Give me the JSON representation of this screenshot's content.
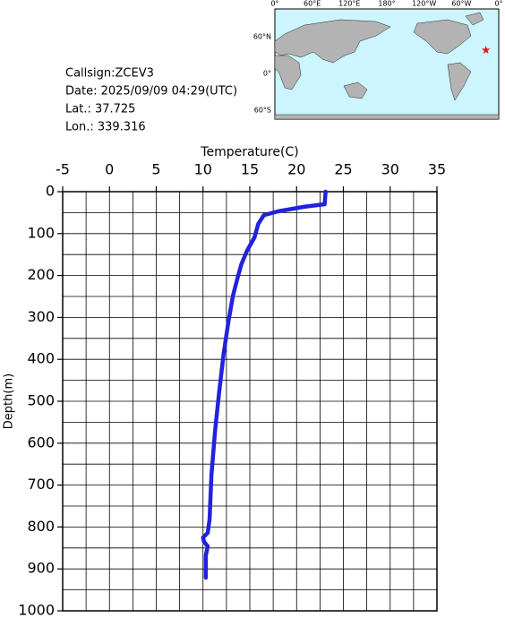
{
  "chart_data": {
    "type": "line",
    "info": [
      "Callsign:ZCEV3",
      "Date:  2025/09/09 04:29(UTC)",
      "Lat.:  37.725",
      "Lon.:  339.316"
    ],
    "xlabel": "Temperature(C)",
    "ylabel": "Depth(m)",
    "xaxis_position": "top",
    "y_inverted": true,
    "grid": true,
    "xlim": [
      -5,
      35
    ],
    "xticks": [
      -5,
      0,
      5,
      10,
      15,
      20,
      25,
      30,
      35
    ],
    "xgrid_minor": [
      -2.5,
      2.5,
      7.5,
      12.5,
      17.5,
      22.5,
      27.5,
      32.5
    ],
    "ylim": [
      0,
      1000
    ],
    "yticks": [
      0,
      100,
      200,
      300,
      400,
      500,
      600,
      700,
      800,
      900,
      1000
    ],
    "ygrid_minor": [
      50,
      150,
      250,
      350,
      450,
      550,
      650,
      750,
      850,
      950
    ],
    "x": [
      23.1,
      23.0,
      20.8,
      18.0,
      16.5,
      15.9,
      15.5,
      14.7,
      14.1,
      13.7,
      13.2,
      12.7,
      12.2,
      11.7,
      11.3,
      10.9,
      10.7,
      10.5,
      10.0,
      10.1,
      10.5,
      10.3,
      10.3
    ],
    "series": [
      {
        "color": "#2222dd",
        "values": [
          0,
          30,
          36,
          47,
          56,
          77,
          109,
          141,
          173,
          205,
          248,
          312,
          387,
          483,
          568,
          675,
          782,
          814,
          825,
          835,
          846,
          868,
          921
        ]
      }
    ],
    "map": {
      "lonlim": [
        0,
        360
      ],
      "latlim": [
        -75,
        105
      ],
      "lonticks": [
        {
          "value": 0,
          "label": "0°"
        },
        {
          "value": 60,
          "label": "60°E"
        },
        {
          "value": 120,
          "label": "120°E"
        },
        {
          "value": 180,
          "label": "180°"
        },
        {
          "value": 240,
          "label": "120°W"
        },
        {
          "value": 300,
          "label": "60°W"
        },
        {
          "value": 360,
          "label": "0°"
        }
      ],
      "latticks": [
        {
          "value": 60,
          "label": "60°N"
        },
        {
          "value": 0,
          "label": "0°"
        },
        {
          "value": -60,
          "label": "60°S"
        }
      ],
      "station": {
        "lat": 37.725,
        "lon": 339.316,
        "color": "#ee1111"
      }
    }
  }
}
